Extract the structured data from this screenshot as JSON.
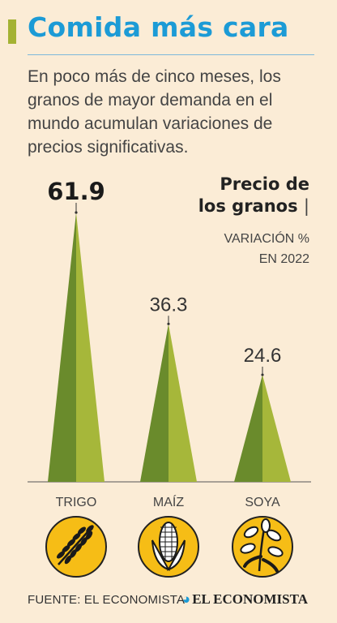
{
  "header": {
    "title": "Comida más cara",
    "subtitle": "En poco más de cinco meses, los granos de mayor demanda en el mundo acumulan variaciones de precios significativas."
  },
  "chart_data": {
    "type": "bar",
    "title_line1": "Precio de",
    "title_line2": "los granos",
    "title_pipe": "|",
    "unit_line1": "VARIACIÓN %",
    "unit_line2": "EN 2022",
    "categories": [
      "TRIGO",
      "MAÍZ",
      "SOYA"
    ],
    "values": [
      61.9,
      36.3,
      24.6
    ],
    "value_labels": [
      "61.9",
      "36.3",
      "24.6"
    ],
    "ylim": [
      0,
      61.9
    ],
    "grid": false,
    "colors": {
      "dark": "#6a8b2c",
      "light": "#a6b73a",
      "axis": "#555555"
    }
  },
  "icons": [
    "wheat-icon",
    "corn-icon",
    "soybean-plant-icon"
  ],
  "footer": {
    "source": "FUENTE: EL ECONOMISTA",
    "logo": "EL ECONOMISTA"
  },
  "colors": {
    "title": "#1c9bd6",
    "background": "#fbecd6",
    "accent": "#a4b233",
    "icon_fill": "#f6bd16"
  }
}
